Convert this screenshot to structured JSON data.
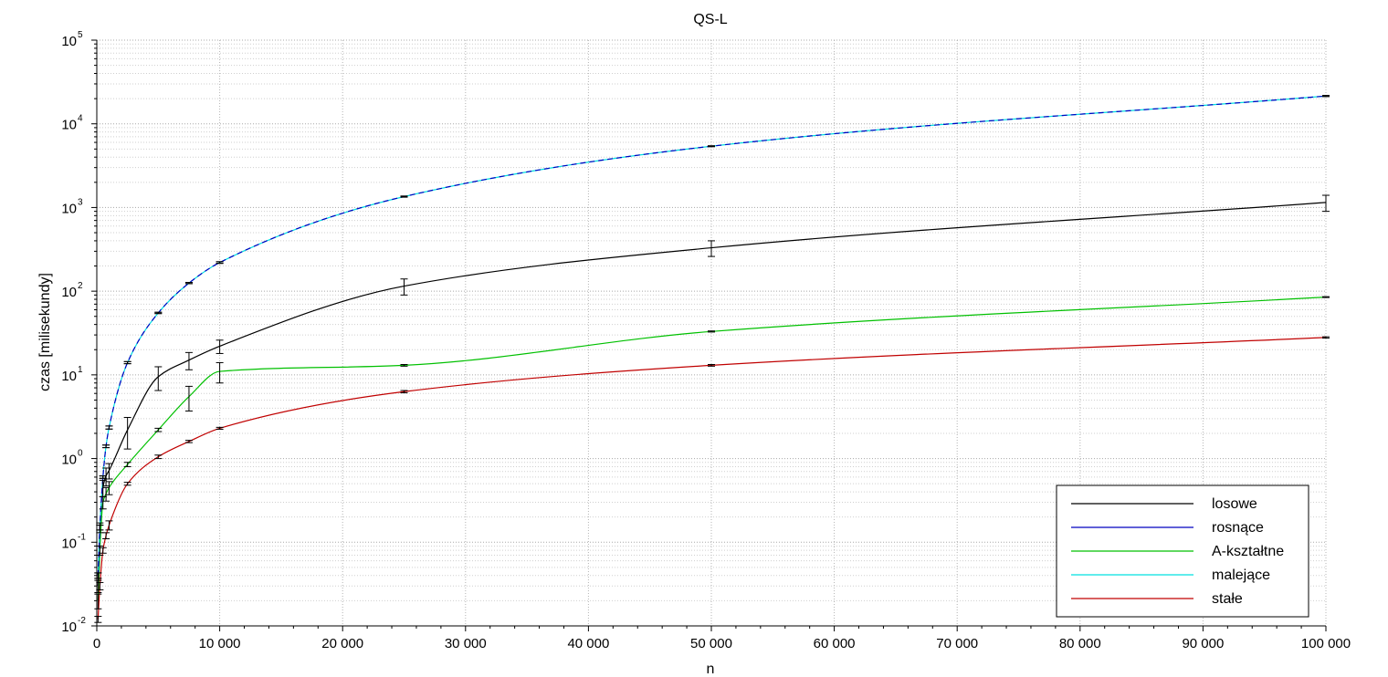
{
  "chart_data": {
    "type": "line",
    "title": "QS-L",
    "xlabel": "n",
    "ylabel": "czas [milisekundy]",
    "xlim": [
      0,
      100000
    ],
    "ylim": [
      0.01,
      100000
    ],
    "y_scale": "log",
    "grid": true,
    "legend_position": "bottom-right",
    "x_ticks": [
      0,
      10000,
      20000,
      30000,
      40000,
      50000,
      60000,
      70000,
      80000,
      90000,
      100000
    ],
    "x_tick_labels": [
      "0",
      "10 000",
      "20 000",
      "30 000",
      "40 000",
      "50 000",
      "60 000",
      "70 000",
      "80 000",
      "90 000",
      "100 000"
    ],
    "y_ticks": [
      {
        "value": 0.01,
        "base": "10",
        "exp": "-2"
      },
      {
        "value": 0.1,
        "base": "10",
        "exp": "-1"
      },
      {
        "value": 1,
        "base": "10",
        "exp": "0"
      },
      {
        "value": 10,
        "base": "10",
        "exp": "1"
      },
      {
        "value": 100,
        "base": "10",
        "exp": "2"
      },
      {
        "value": 1000,
        "base": "10",
        "exp": "3"
      },
      {
        "value": 10000,
        "base": "10",
        "exp": "4"
      },
      {
        "value": 100000,
        "base": "10",
        "exp": "5"
      }
    ],
    "x": [
      100,
      250,
      500,
      750,
      1000,
      2500,
      5000,
      7500,
      10000,
      25000,
      50000,
      100000
    ],
    "series": [
      {
        "name": "losowe",
        "color": "#000000",
        "values": [
          0.03,
          0.15,
          0.45,
          0.62,
          0.72,
          2.2,
          9.5,
          15,
          22,
          115,
          330,
          1150
        ],
        "err": [
          0.005,
          0.02,
          0.1,
          0.15,
          0.15,
          0.9,
          3,
          3.5,
          4,
          25,
          70,
          250
        ]
      },
      {
        "name": "rosnące",
        "color": "#0000c0",
        "values": [
          0.04,
          0.15,
          0.6,
          1.4,
          2.35,
          14,
          55,
          125,
          220,
          1350,
          5400,
          21500
        ],
        "err": [
          0.003,
          0.01,
          0.02,
          0.05,
          0.1,
          0.4,
          1,
          2,
          5,
          20,
          60,
          300
        ]
      },
      {
        "name": "A-kształtne",
        "color": "#00c000",
        "values": [
          0.02,
          0.08,
          0.3,
          0.38,
          0.45,
          0.85,
          2.2,
          5.5,
          11,
          13,
          33,
          85
        ],
        "err": [
          0.004,
          0.01,
          0.05,
          0.07,
          0.08,
          0.05,
          0.1,
          1.8,
          3,
          0.3,
          0.5,
          1
        ]
      },
      {
        "name": "malejące",
        "color": "#00e0e0",
        "values": [
          0.04,
          0.15,
          0.6,
          1.4,
          2.35,
          14,
          55,
          125,
          220,
          1350,
          5400,
          21500
        ],
        "err": [
          0.003,
          0.01,
          0.02,
          0.05,
          0.1,
          0.4,
          1,
          2,
          5,
          20,
          60,
          300
        ]
      },
      {
        "name": "stałe",
        "color": "#c00000",
        "values": [
          0.012,
          0.03,
          0.08,
          0.12,
          0.16,
          0.5,
          1.05,
          1.6,
          2.3,
          6.3,
          13,
          28
        ],
        "err": [
          0.001,
          0.003,
          0.006,
          0.01,
          0.02,
          0.02,
          0.05,
          0.05,
          0.06,
          0.2,
          0.3,
          0.5
        ]
      }
    ]
  }
}
